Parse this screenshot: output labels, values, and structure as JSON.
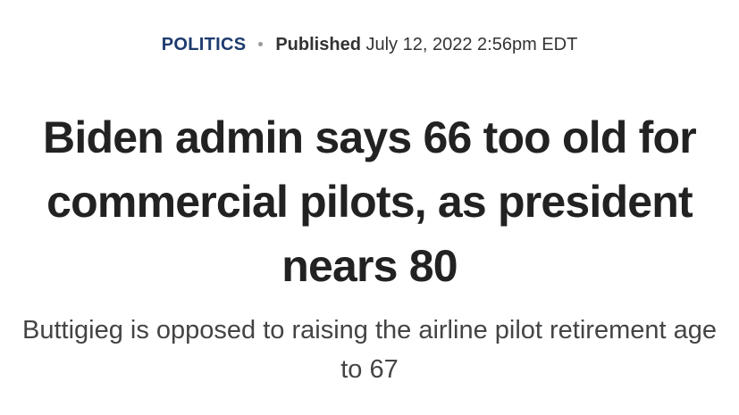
{
  "meta": {
    "category": "POLITICS",
    "published_label": "Published",
    "published_date": "July 12, 2022 2:56pm EDT"
  },
  "headline": "Biden admin says 66 too old for commercial pilots, as president nears 80",
  "subheadline": "Buttigieg is opposed to raising the airline pilot retirement age to 67"
}
